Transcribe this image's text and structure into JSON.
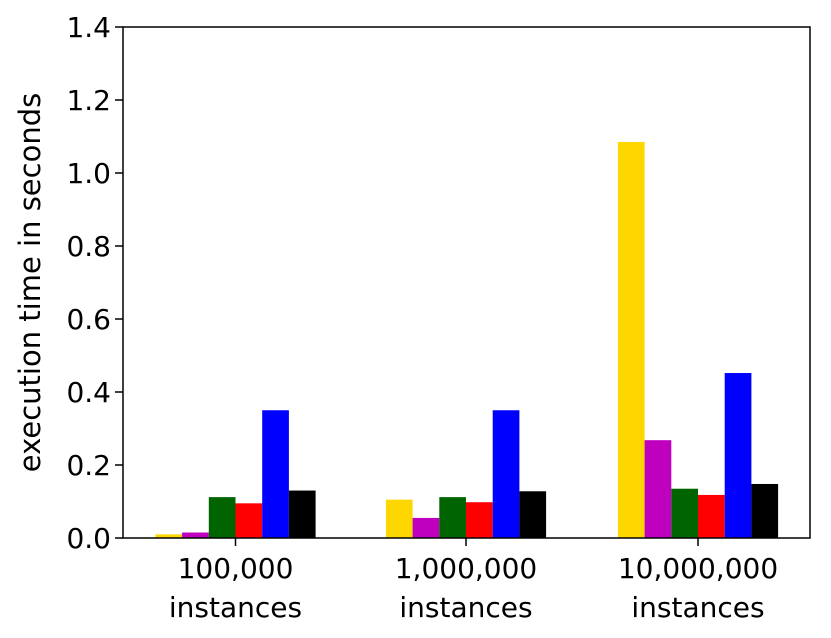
{
  "chart_data": {
    "type": "bar",
    "title": "",
    "xlabel": "",
    "ylabel": "execution time in seconds",
    "ylim": [
      0,
      1.4
    ],
    "yticks": [
      "0.0",
      "0.2",
      "0.4",
      "0.6",
      "0.8",
      "1.0",
      "1.2",
      "1.4"
    ],
    "grid": false,
    "legend": "none",
    "categories": [
      [
        "100,000",
        "instances"
      ],
      [
        "1,000,000",
        "instances"
      ],
      [
        "10,000,000",
        "instances"
      ]
    ],
    "series": [
      {
        "color": "#ffd700",
        "values": [
          0.01,
          0.105,
          1.085
        ]
      },
      {
        "color": "#bf00bf",
        "values": [
          0.015,
          0.055,
          0.268
        ]
      },
      {
        "color": "#006400",
        "values": [
          0.112,
          0.112,
          0.135
        ]
      },
      {
        "color": "#ff0000",
        "values": [
          0.095,
          0.098,
          0.118
        ]
      },
      {
        "color": "#0000ff",
        "values": [
          0.35,
          0.35,
          0.452
        ]
      },
      {
        "color": "#000000",
        "values": [
          0.13,
          0.128,
          0.148
        ]
      }
    ]
  }
}
